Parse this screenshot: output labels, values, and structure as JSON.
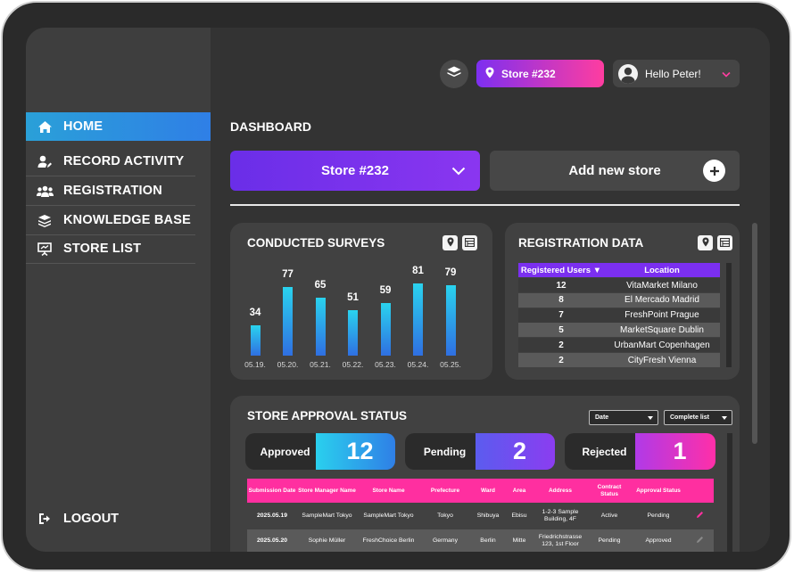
{
  "sidebar": {
    "items": [
      {
        "label": "HOME",
        "icon": "home-icon",
        "active": true
      },
      {
        "label": "RECORD ACTIVITY",
        "icon": "user-edit-icon"
      },
      {
        "label": "REGISTRATION",
        "icon": "users-icon"
      },
      {
        "label": "KNOWLEDGE BASE",
        "icon": "stack-icon"
      },
      {
        "label": "STORE LIST",
        "icon": "presentation-board-icon"
      }
    ],
    "logout_label": "LOGOUT"
  },
  "header": {
    "layers_icon": "layers-icon",
    "store_label": "Store #232",
    "user_greeting": "Hello Peter!"
  },
  "dashboard": {
    "title": "DASHBOARD",
    "store_select": "Store #232",
    "add_store": "Add new store"
  },
  "surveys": {
    "title": "CONDUCTED SURVEYS"
  },
  "chart_data": {
    "type": "bar",
    "title": "CONDUCTED SURVEYS",
    "categories": [
      "05.19.",
      "05.20.",
      "05.21.",
      "05.22.",
      "05.23.",
      "05.24.",
      "05.25."
    ],
    "values": [
      34,
      77,
      65,
      51,
      59,
      81,
      79
    ],
    "value_labels": [
      "34",
      "77",
      "65",
      "51",
      "59",
      "81",
      "79"
    ],
    "ylim": [
      0,
      100
    ],
    "grid": false,
    "colors": {
      "top": "#2ad3ee",
      "bottom": "#2f6fe2"
    }
  },
  "registration": {
    "title": "REGISTRATION DATA",
    "headers": [
      "Registered Users ▼",
      "Location"
    ],
    "rows": [
      {
        "users": "12",
        "location": "VitaMarket Milano"
      },
      {
        "users": "8",
        "location": "El Mercado Madrid"
      },
      {
        "users": "7",
        "location": "FreshPoint Prague"
      },
      {
        "users": "5",
        "location": "MarketSquare Dublin"
      },
      {
        "users": "2",
        "location": "UrbanMart Copenhagen"
      },
      {
        "users": "2",
        "location": "CityFresh Vienna"
      }
    ]
  },
  "approval": {
    "title": "STORE APPROVAL STATUS",
    "filter_date": "Date",
    "filter_list": "Complete list",
    "stats": [
      {
        "label": "Approved",
        "value": "12",
        "color": "#2fb8e8"
      },
      {
        "label": "Pending",
        "value": "2",
        "color": "#6b46ec"
      },
      {
        "label": "Rejected",
        "value": "1",
        "color": "#e02fc4"
      }
    ],
    "headers": [
      "Submission Date",
      "Store Manager Name",
      "Store Name",
      "Prefecture",
      "Ward",
      "Area",
      "Address",
      "Contract Status",
      "Approval Status"
    ],
    "rows": [
      [
        "2025.05.19",
        "SampleMart Tokyo",
        "SampleMart Tokyo",
        "Tokyo",
        "Shibuya",
        "Ebisu",
        "1-2-3 Sample Building, 4F",
        "Active",
        "Pending"
      ],
      [
        "2025.05.20",
        "Sophie Müller",
        "FreshChoice Berlin",
        "Germany",
        "Berlin",
        "Mitte",
        "Friedrichstrasse 123, 1st Floor",
        "Pending",
        "Approved"
      ]
    ]
  }
}
